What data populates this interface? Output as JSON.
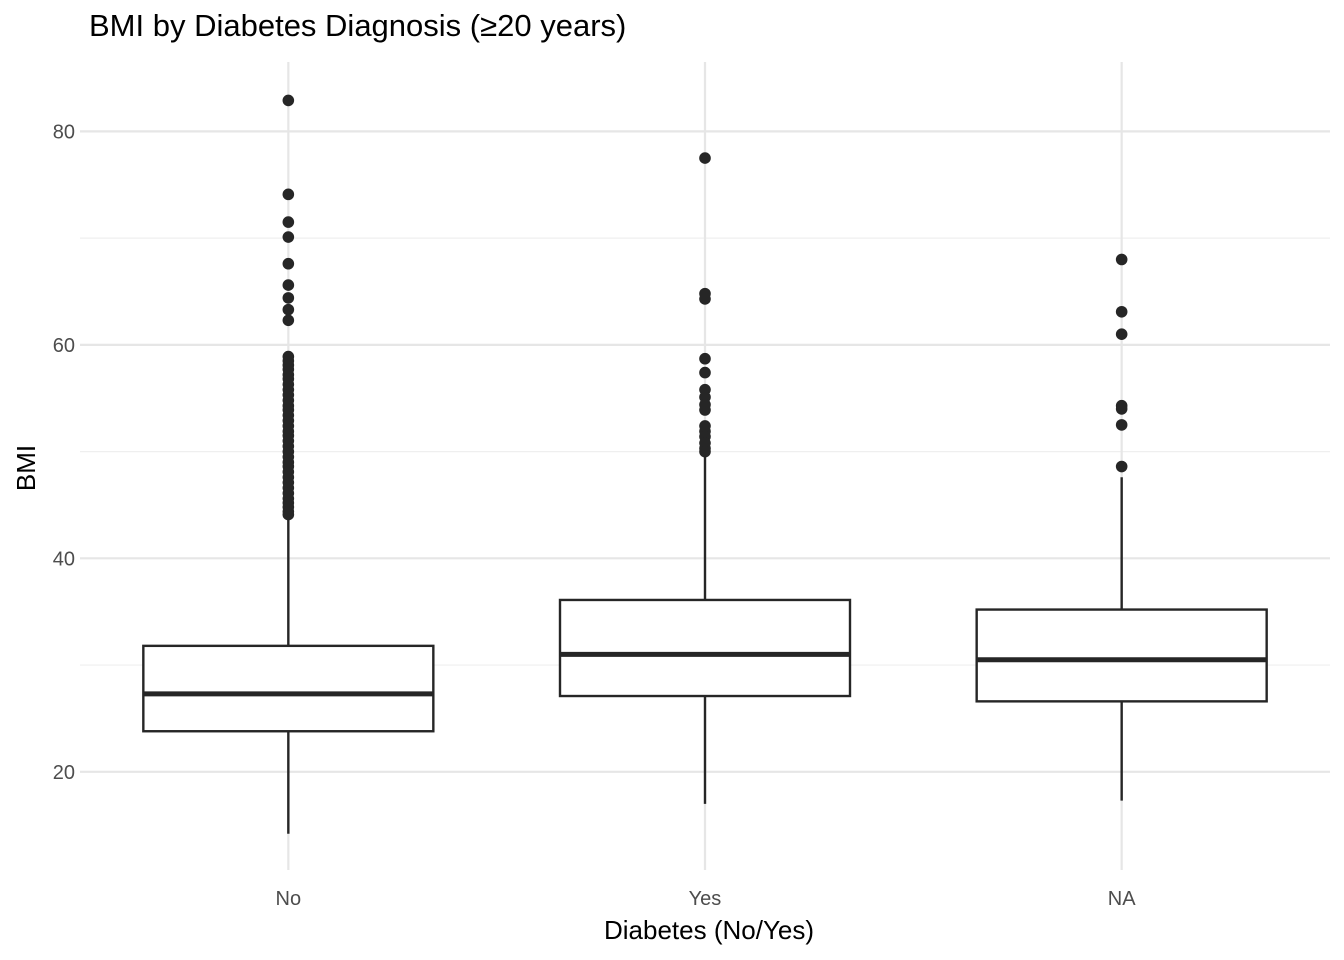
{
  "chart_data": {
    "type": "boxplot",
    "title": "BMI by Diabetes Diagnosis (≥20 years)",
    "xlabel": "Diabetes (No/Yes)",
    "ylabel": "BMI",
    "ylim": [
      10.8,
      86.5
    ],
    "yticks": [
      20,
      40,
      60,
      80
    ],
    "grid": true,
    "categories": [
      "No",
      "Yes",
      "NA"
    ],
    "boxes": [
      {
        "category": "No",
        "whisker_low": 14.2,
        "q1": 23.8,
        "median": 27.3,
        "q3": 31.8,
        "whisker_high": 43.8,
        "outliers": [
          82.9,
          74.1,
          71.5,
          70.1,
          67.6,
          65.6,
          64.4,
          63.3,
          62.3,
          58.9,
          58.5,
          58.1,
          57.7,
          57.2,
          56.8,
          56.3,
          55.8,
          55.3,
          54.8,
          54.3,
          53.9,
          53.4,
          52.9,
          52.4,
          51.9,
          51.5,
          51.0,
          50.5,
          50.0,
          49.5,
          49.0,
          48.6,
          48.1,
          47.6,
          47.1,
          46.6,
          46.1,
          45.6,
          45.2,
          44.8,
          44.4,
          44.1
        ]
      },
      {
        "category": "Yes",
        "whisker_low": 17.0,
        "q1": 27.1,
        "median": 31.0,
        "q3": 36.1,
        "whisker_high": 49.8,
        "outliers": [
          77.5,
          64.8,
          64.3,
          58.7,
          57.4,
          55.8,
          55.1,
          54.4,
          53.9,
          52.4,
          51.9,
          51.4,
          50.8,
          50.3,
          50.0
        ]
      },
      {
        "category": "NA",
        "whisker_low": 17.3,
        "q1": 26.6,
        "median": 30.5,
        "q3": 35.2,
        "whisker_high": 47.6,
        "outliers": [
          68.0,
          63.1,
          61.0,
          54.3,
          54.0,
          52.5,
          48.6
        ]
      }
    ]
  },
  "colors": {
    "box_line": "#262626",
    "point": "#262626",
    "grid_major": "#e6e6e6",
    "grid_minor": "#efefef",
    "background": "#ffffff"
  }
}
